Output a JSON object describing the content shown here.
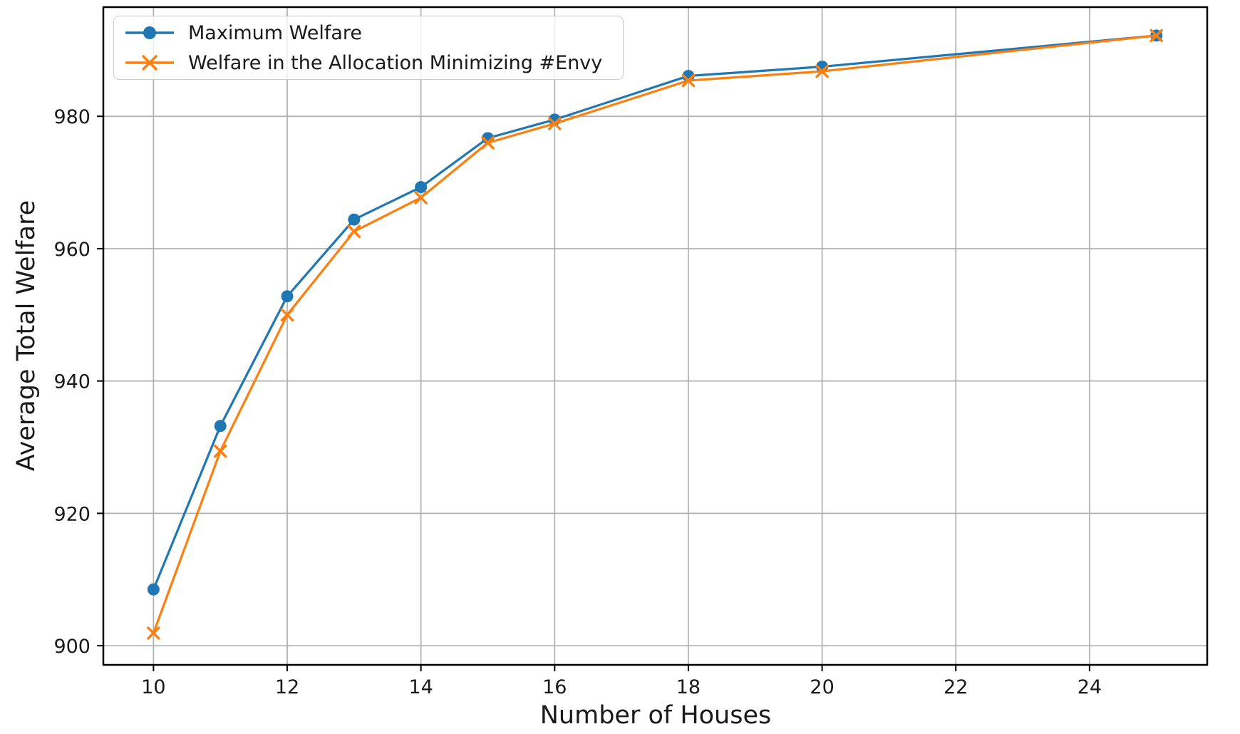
{
  "chart_data": {
    "type": "line",
    "title": "",
    "xlabel": "Number of Houses",
    "ylabel": "Average Total Welfare",
    "x": [
      10,
      11,
      12,
      13,
      14,
      15,
      16,
      18,
      20,
      25
    ],
    "series": [
      {
        "name": "Maximum Welfare",
        "color": "#1f77b4",
        "marker": "circle",
        "values": [
          908.5,
          933.2,
          952.8,
          964.4,
          969.3,
          976.7,
          979.5,
          986.1,
          987.5,
          992.2
        ]
      },
      {
        "name": "Welfare in the Allocation Minimizing #Envy",
        "color": "#ff7f0e",
        "marker": "x",
        "values": [
          901.9,
          929.4,
          950.0,
          962.6,
          967.7,
          976.0,
          978.9,
          985.4,
          986.8,
          992.2
        ]
      }
    ],
    "xticks": [
      10,
      12,
      14,
      16,
      18,
      20,
      22,
      24
    ],
    "yticks": [
      900,
      920,
      940,
      960,
      980
    ],
    "xlim": [
      9.25,
      25.76
    ],
    "ylim": [
      897.1,
      996.5
    ],
    "grid": true,
    "legend_position": "upper left",
    "colors": {
      "grid": "#b0b0b0",
      "spine": "#000000",
      "text": "#1a1a1a",
      "legend_border": "#cccccc"
    }
  }
}
